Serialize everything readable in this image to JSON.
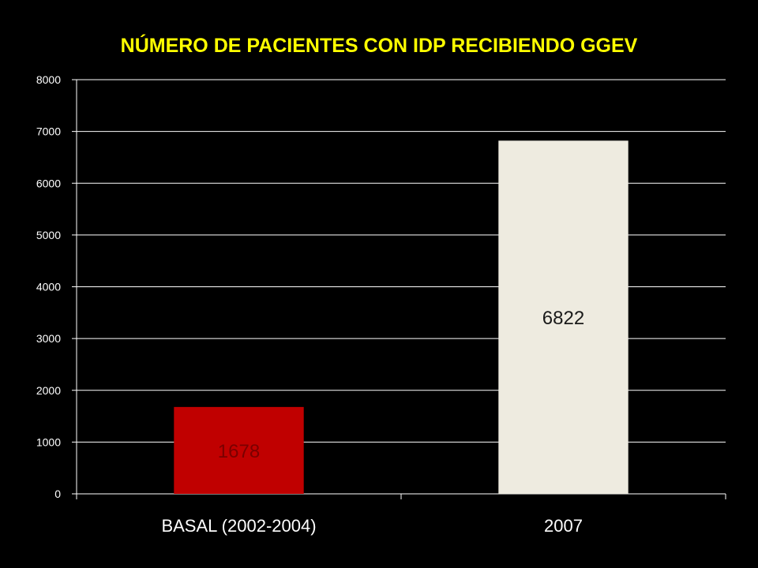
{
  "chart_data": {
    "type": "bar",
    "title": "NÚMERO DE PACIENTES CON IDP RECIBIENDO GGEV",
    "xlabel": "",
    "ylabel": "",
    "categories": [
      "BASAL (2002-2004)",
      "2007"
    ],
    "values": [
      1678,
      6822
    ],
    "data_labels": [
      "1678",
      "6822"
    ],
    "ylim": [
      0,
      8000
    ],
    "yticks": [
      0,
      1000,
      2000,
      3000,
      4000,
      5000,
      6000,
      7000,
      8000
    ],
    "ytick_labels": [
      "0",
      "1000",
      "2000",
      "3000",
      "4000",
      "5000",
      "6000",
      "7000",
      "8000"
    ],
    "grid": true,
    "legend": "none",
    "colors": {
      "background": "#000000",
      "title": "#ffff00",
      "bars": [
        "#c00000",
        "#eeebe0"
      ],
      "data_labels": [
        "#7a0000",
        "#1a1a1a"
      ],
      "axis": "#ffffff",
      "grid": "#ffffff"
    }
  }
}
